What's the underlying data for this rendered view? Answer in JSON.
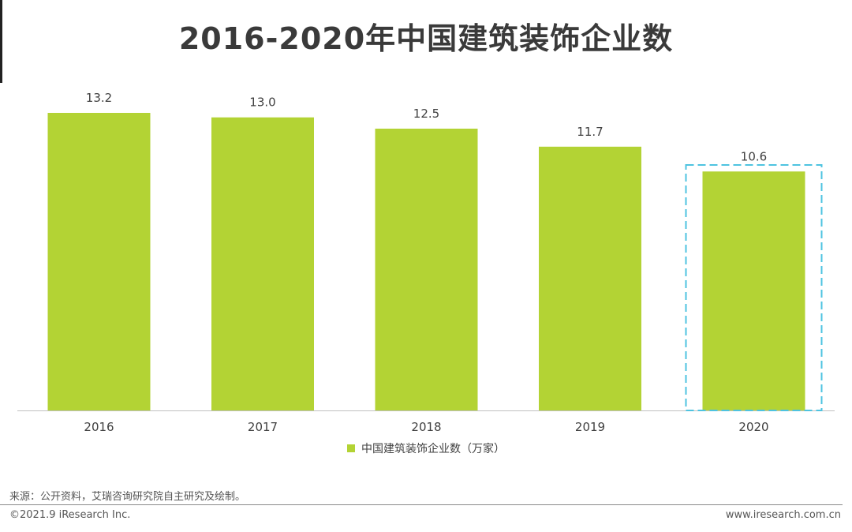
{
  "page": {
    "title": "2016-2020年中国建筑装饰企业数",
    "source": "来源：公开资料，艾瑞咨询研究院自主研究及绘制。",
    "copyright": "©2021.9 iResearch Inc.",
    "website": "www.iresearch.com.cn"
  },
  "colors": {
    "bar": "#b3d334",
    "highlight_border": "#4ec3e0",
    "axis": "#bfbfbf"
  },
  "chart_data": {
    "type": "bar",
    "title": "2016-2020年中国建筑装饰企业数",
    "categories": [
      "2016",
      "2017",
      "2018",
      "2019",
      "2020"
    ],
    "series": [
      {
        "name": "中国建筑装饰企业数（万家）",
        "values": [
          13.2,
          13.0,
          12.5,
          11.7,
          10.6
        ],
        "labels": [
          "13.2",
          "13.0",
          "12.5",
          "11.7",
          "10.6"
        ]
      }
    ],
    "ylim": [
      0,
      13.2
    ],
    "grid": false,
    "legend": "bottom-center",
    "highlighted_category": "2020"
  }
}
